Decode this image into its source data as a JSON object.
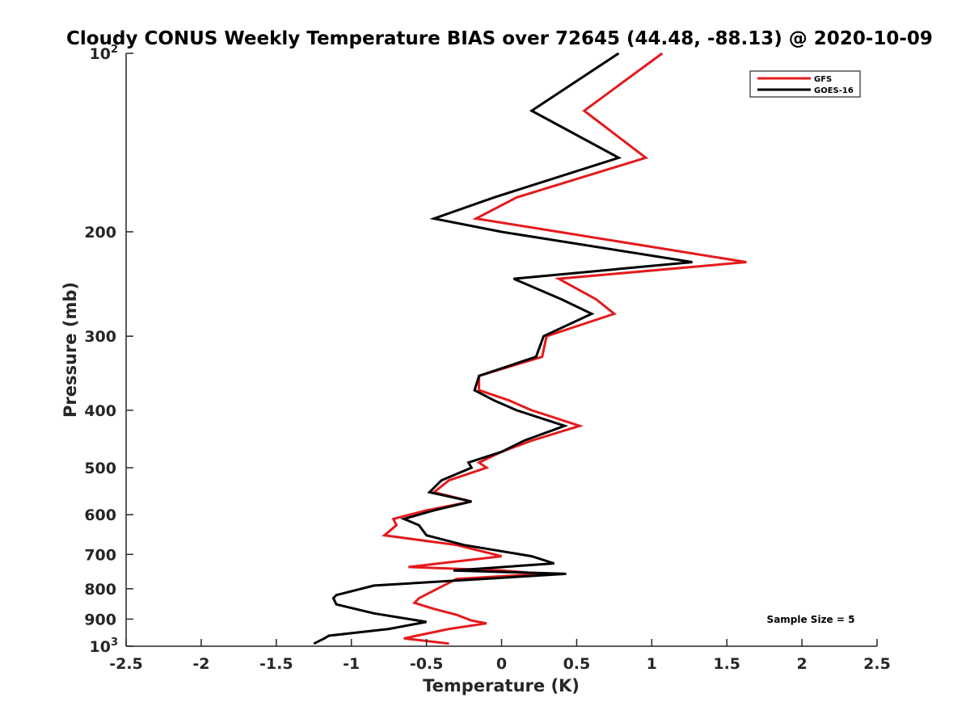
{
  "chart_data": {
    "type": "line",
    "title": "Cloudy CONUS Weekly Temperature BIAS over 72645 (44.48, -88.13) @ 2020-10-09",
    "xlabel": "Temperature (K)",
    "ylabel": "Pressure (mb)",
    "xlim": [
      -2.5,
      2.5
    ],
    "ylim": [
      100,
      1000
    ],
    "y_scale": "log",
    "y_reversed": true,
    "grid": false,
    "legend_position": "top-right",
    "x_ticks": [
      "-2.5",
      "-2",
      "-1.5",
      "-1",
      "-0.5",
      "0",
      "0.5",
      "1",
      "1.5",
      "2",
      "2.5"
    ],
    "y_ticks": [
      {
        "value": 100,
        "base": "10",
        "exp": "2"
      },
      {
        "value": 200,
        "label": "200"
      },
      {
        "value": 300,
        "label": "300"
      },
      {
        "value": 400,
        "label": "400"
      },
      {
        "value": 500,
        "label": "500"
      },
      {
        "value": 600,
        "label": "600"
      },
      {
        "value": 700,
        "label": "700"
      },
      {
        "value": 800,
        "label": "800"
      },
      {
        "value": 900,
        "label": "900"
      },
      {
        "value": 1000,
        "base": "10",
        "exp": "3"
      }
    ],
    "series": [
      {
        "name": "GFS",
        "color": "#e41a1c",
        "points": [
          [
            1.07,
            100
          ],
          [
            0.55,
            125
          ],
          [
            0.96,
            150
          ],
          [
            0.1,
            175
          ],
          [
            -0.17,
            190
          ],
          [
            0.38,
            200
          ],
          [
            1.63,
            225
          ],
          [
            0.38,
            240
          ],
          [
            0.63,
            260
          ],
          [
            0.75,
            275
          ],
          [
            0.3,
            300
          ],
          [
            0.27,
            325
          ],
          [
            -0.15,
            350
          ],
          [
            -0.15,
            370
          ],
          [
            0.05,
            385
          ],
          [
            0.2,
            400
          ],
          [
            0.52,
            425
          ],
          [
            0.2,
            450
          ],
          [
            0.0,
            470
          ],
          [
            -0.15,
            490
          ],
          [
            -0.1,
            500
          ],
          [
            -0.35,
            525
          ],
          [
            -0.45,
            550
          ],
          [
            -0.2,
            570
          ],
          [
            -0.5,
            590
          ],
          [
            -0.72,
            610
          ],
          [
            -0.7,
            625
          ],
          [
            -0.78,
            650
          ],
          [
            -0.3,
            675
          ],
          [
            0.0,
            705
          ],
          [
            -0.62,
            735
          ],
          [
            0.0,
            745
          ],
          [
            0.27,
            755
          ],
          [
            -0.3,
            770
          ],
          [
            -0.55,
            830
          ],
          [
            -0.58,
            845
          ],
          [
            -0.45,
            865
          ],
          [
            -0.3,
            885
          ],
          [
            -0.2,
            905
          ],
          [
            -0.1,
            915
          ],
          [
            -0.35,
            935
          ],
          [
            -0.65,
            970
          ],
          [
            -0.35,
            990
          ]
        ]
      },
      {
        "name": "GOES-16",
        "color": "#000000",
        "points": [
          [
            0.78,
            100
          ],
          [
            0.2,
            125
          ],
          [
            0.78,
            150
          ],
          [
            -0.05,
            175
          ],
          [
            -0.45,
            190
          ],
          [
            0.0,
            200
          ],
          [
            1.27,
            225
          ],
          [
            0.08,
            240
          ],
          [
            0.4,
            260
          ],
          [
            0.6,
            275
          ],
          [
            0.28,
            300
          ],
          [
            0.23,
            325
          ],
          [
            -0.15,
            350
          ],
          [
            -0.18,
            370
          ],
          [
            -0.05,
            385
          ],
          [
            0.1,
            400
          ],
          [
            0.42,
            425
          ],
          [
            0.15,
            450
          ],
          [
            0.0,
            470
          ],
          [
            -0.22,
            490
          ],
          [
            -0.2,
            500
          ],
          [
            -0.4,
            525
          ],
          [
            -0.48,
            550
          ],
          [
            -0.2,
            570
          ],
          [
            -0.45,
            590
          ],
          [
            -0.65,
            610
          ],
          [
            -0.55,
            625
          ],
          [
            -0.5,
            650
          ],
          [
            -0.25,
            675
          ],
          [
            0.2,
            705
          ],
          [
            0.35,
            725
          ],
          [
            -0.32,
            745
          ],
          [
            0.43,
            755
          ],
          [
            -0.85,
            790
          ],
          [
            -1.1,
            820
          ],
          [
            -1.12,
            830
          ],
          [
            -1.1,
            850
          ],
          [
            -0.85,
            880
          ],
          [
            -0.5,
            910
          ],
          [
            -0.75,
            935
          ],
          [
            -1.15,
            960
          ],
          [
            -1.18,
            970
          ],
          [
            -1.25,
            990
          ]
        ]
      }
    ],
    "annotations": [
      {
        "text": "Sample Size = 5"
      }
    ]
  }
}
